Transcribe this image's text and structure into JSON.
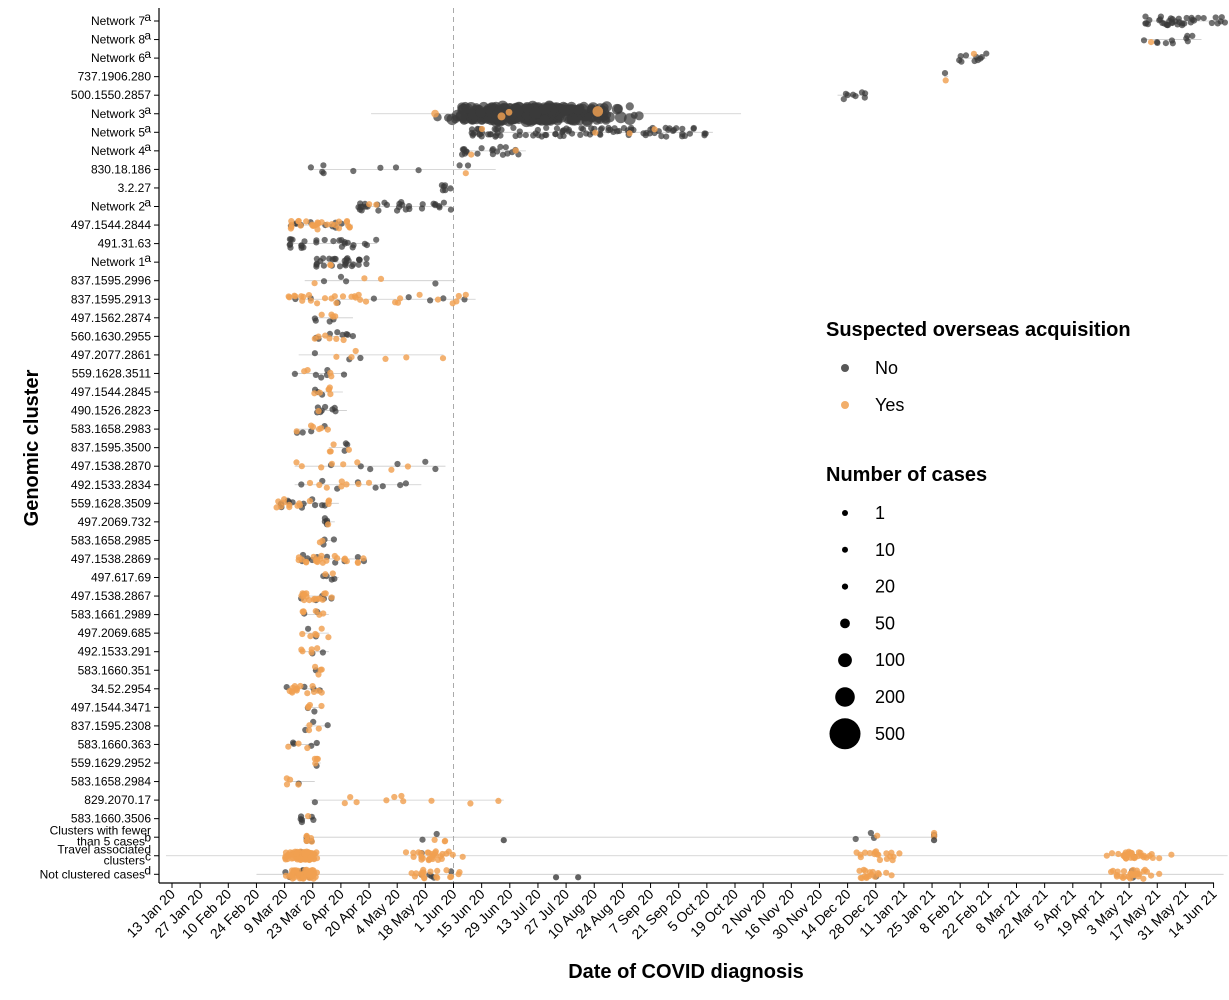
{
  "chart_data": {
    "type": "scatter",
    "title": "",
    "xlabel": "Date of COVID diagnosis",
    "ylabel": "Genomic cluster",
    "x_ticks": [
      "13 Jan 20",
      "27 Jan 20",
      "10 Feb 20",
      "24 Feb 20",
      "9 Mar 20",
      "23 Mar 20",
      "6 Apr 20",
      "20 Apr 20",
      "4 May 20",
      "18 May 20",
      "1 Jun 20",
      "15 Jun 20",
      "29 Jun 20",
      "13 Jul 20",
      "27 Jul 20",
      "10 Aug 20",
      "24 Aug 20",
      "7 Sep 20",
      "21 Sep 20",
      "5 Oct 20",
      "19 Oct 20",
      "2 Nov 20",
      "16 Nov 20",
      "30 Nov 20",
      "14 Dec 20",
      "28 Dec 20",
      "11 Jan 21",
      "25 Jan 21",
      "8 Feb 21",
      "22 Feb 21",
      "8 Mar 21",
      "22 Mar 21",
      "5 Apr 21",
      "19 Apr 21",
      "3 May 21",
      "17 May 21",
      "31 May 21",
      "14 Jun 21"
    ],
    "reference_line": "1 Jun 20",
    "clusters": [
      {
        "label": "Network 7",
        "sup": "a",
        "start": "2021-05-11",
        "end": "2021-06-20",
        "no": 38,
        "yes": 0
      },
      {
        "label": "Network 8",
        "sup": "a",
        "start": "2021-05-09",
        "end": "2021-06-08",
        "no": 10,
        "yes": 1
      },
      {
        "label": "Network 6",
        "sup": "a",
        "start": "2021-02-07",
        "end": "2021-02-21",
        "no": 10,
        "yes": 1
      },
      {
        "label": "737.1906.280",
        "sup": "",
        "start": "2021-01-31",
        "end": "2021-02-02",
        "no": 1,
        "yes": 1
      },
      {
        "label": "500.1550.2857",
        "sup": "",
        "start": "2020-12-09",
        "end": "2020-12-23",
        "no": 8,
        "yes": 0
      },
      {
        "label": "Network 3",
        "sup": "a",
        "start": "2020-04-21",
        "end": "2020-10-22",
        "no": 420,
        "yes": 4
      },
      {
        "label": "Network 5",
        "sup": "a",
        "start": "2020-06-10",
        "end": "2020-10-08",
        "no": 100,
        "yes": 4
      },
      {
        "label": "Network 4",
        "sup": "a",
        "start": "2020-06-05",
        "end": "2020-07-07",
        "no": 20,
        "yes": 2
      },
      {
        "label": "830.18.186",
        "sup": "",
        "start": "2020-03-22",
        "end": "2020-06-22",
        "no": 10,
        "yes": 1
      },
      {
        "label": "3.2.27",
        "sup": "",
        "start": "2020-05-26",
        "end": "2020-06-01",
        "no": 6,
        "yes": 0
      },
      {
        "label": "Network 2",
        "sup": "a",
        "start": "2020-04-14",
        "end": "2020-05-31",
        "no": 30,
        "yes": 2
      },
      {
        "label": "497.1544.2844",
        "sup": "",
        "start": "2020-03-12",
        "end": "2020-04-12",
        "no": 10,
        "yes": 28
      },
      {
        "label": "491.31.63",
        "sup": "",
        "start": "2020-03-11",
        "end": "2020-04-24",
        "no": 26,
        "yes": 0
      },
      {
        "label": "Network 1",
        "sup": "a",
        "start": "2020-03-24",
        "end": "2020-04-19",
        "no": 28,
        "yes": 2
      },
      {
        "label": "837.1595.2996",
        "sup": "",
        "start": "2020-03-19",
        "end": "2020-06-02",
        "no": 4,
        "yes": 3
      },
      {
        "label": "837.1595.2913",
        "sup": "",
        "start": "2020-03-11",
        "end": "2020-06-12",
        "no": 8,
        "yes": 30
      },
      {
        "label": "497.1562.2874",
        "sup": "",
        "start": "2020-03-24",
        "end": "2020-04-12",
        "no": 4,
        "yes": 4
      },
      {
        "label": "560.1630.2955",
        "sup": "",
        "start": "2020-03-24",
        "end": "2020-04-12",
        "no": 8,
        "yes": 6
      },
      {
        "label": "497.2077.2861",
        "sup": "",
        "start": "2020-03-16",
        "end": "2020-05-27",
        "no": 3,
        "yes": 6
      },
      {
        "label": "559.1628.3511",
        "sup": "",
        "start": "2020-03-14",
        "end": "2020-04-09",
        "no": 6,
        "yes": 4
      },
      {
        "label": "497.1544.2845",
        "sup": "",
        "start": "2020-03-23",
        "end": "2020-04-07",
        "no": 3,
        "yes": 6
      },
      {
        "label": "490.1526.2823",
        "sup": "",
        "start": "2020-03-25",
        "end": "2020-04-09",
        "no": 8,
        "yes": 1
      },
      {
        "label": "583.1658.2983",
        "sup": "",
        "start": "2020-03-14",
        "end": "2020-04-01",
        "no": 4,
        "yes": 6
      },
      {
        "label": "837.1595.3500",
        "sup": "",
        "start": "2020-03-31",
        "end": "2020-04-10",
        "no": 3,
        "yes": 4
      },
      {
        "label": "497.1538.2870",
        "sup": "",
        "start": "2020-03-14",
        "end": "2020-05-28",
        "no": 6,
        "yes": 8
      },
      {
        "label": "492.1533.2834",
        "sup": "",
        "start": "2020-03-14",
        "end": "2020-05-16",
        "no": 8,
        "yes": 8
      },
      {
        "label": "559.1628.3509",
        "sup": "",
        "start": "2020-03-05",
        "end": "2020-04-05",
        "no": 12,
        "yes": 14
      },
      {
        "label": "497.2069.732",
        "sup": "",
        "start": "2020-03-29",
        "end": "2020-04-03",
        "no": 5,
        "yes": 1
      },
      {
        "label": "583.1658.2985",
        "sup": "",
        "start": "2020-03-26",
        "end": "2020-04-03",
        "no": 3,
        "yes": 2
      },
      {
        "label": "497.1538.2869",
        "sup": "",
        "start": "2020-03-16",
        "end": "2020-04-19",
        "no": 10,
        "yes": 22
      },
      {
        "label": "497.617.69",
        "sup": "",
        "start": "2020-03-28",
        "end": "2020-04-05",
        "no": 4,
        "yes": 2
      },
      {
        "label": "497.1538.2867",
        "sup": "",
        "start": "2020-03-17",
        "end": "2020-04-03",
        "no": 6,
        "yes": 16
      },
      {
        "label": "583.1661.2989",
        "sup": "",
        "start": "2020-03-18",
        "end": "2020-03-31",
        "no": 2,
        "yes": 6
      },
      {
        "label": "497.2069.685",
        "sup": "",
        "start": "2020-03-17",
        "end": "2020-03-31",
        "no": 2,
        "yes": 6
      },
      {
        "label": "492.1533.291",
        "sup": "",
        "start": "2020-03-16",
        "end": "2020-03-31",
        "no": 2,
        "yes": 5
      },
      {
        "label": "583.1660.351",
        "sup": "",
        "start": "2020-03-23",
        "end": "2020-03-28",
        "no": 1,
        "yes": 4
      },
      {
        "label": "34.52.2954",
        "sup": "",
        "start": "2020-03-09",
        "end": "2020-03-28",
        "no": 4,
        "yes": 14
      },
      {
        "label": "497.1544.3471",
        "sup": "",
        "start": "2020-03-20",
        "end": "2020-03-28",
        "no": 2,
        "yes": 4
      },
      {
        "label": "837.1595.2308",
        "sup": "",
        "start": "2020-03-19",
        "end": "2020-03-31",
        "no": 3,
        "yes": 3
      },
      {
        "label": "583.1660.363",
        "sup": "",
        "start": "2020-03-10",
        "end": "2020-03-26",
        "no": 4,
        "yes": 3
      },
      {
        "label": "559.1629.2952",
        "sup": "",
        "start": "2020-03-24",
        "end": "2020-03-27",
        "no": 1,
        "yes": 4
      },
      {
        "label": "583.1658.2984",
        "sup": "",
        "start": "2020-03-10",
        "end": "2020-03-24",
        "no": 1,
        "yes": 4
      },
      {
        "label": "829.2070.17",
        "sup": "",
        "start": "2020-03-22",
        "end": "2020-06-26",
        "no": 1,
        "yes": 10
      },
      {
        "label": "583.1660.3506",
        "sup": "",
        "start": "2020-03-17",
        "end": "2020-03-24",
        "no": 6,
        "yes": 1
      },
      {
        "label": "Clusters with fewer\nthan 5 cases",
        "sup": "b",
        "start": "2020-03-20",
        "end": "2021-01-26",
        "no": 12,
        "yes": 12
      },
      {
        "label": "Travel associated\nclusters",
        "sup": "c",
        "start": "2020-01-10",
        "end": "2021-06-21",
        "no": 5,
        "yes": 160
      },
      {
        "label": "Not clustered cases",
        "sup": "d",
        "start": "2020-02-24",
        "end": "2021-06-19",
        "no": 20,
        "yes": 120
      }
    ],
    "extra_points": [
      {
        "cluster": "Not clustered cases",
        "date": "2020-07-22",
        "group": "No"
      },
      {
        "cluster": "Not clustered cases",
        "date": "2020-08-02",
        "group": "No"
      },
      {
        "cluster": "Clusters with fewer\nthan 5 cases",
        "date": "2021-01-26",
        "group": "No"
      },
      {
        "cluster": "Clusters with fewer\nthan 5 cases",
        "date": "2020-06-26",
        "group": "No"
      }
    ],
    "legend_color": {
      "title": "Suspected overseas acquisition",
      "items": [
        {
          "label": "No",
          "color": "#3a3a3a"
        },
        {
          "label": "Yes",
          "color": "#f0a050"
        }
      ]
    },
    "legend_size": {
      "title": "Number of cases",
      "items": [
        {
          "label": "1",
          "value": 1
        },
        {
          "label": "10",
          "value": 10
        },
        {
          "label": "20",
          "value": 20
        },
        {
          "label": "50",
          "value": 50
        },
        {
          "label": "100",
          "value": 100
        },
        {
          "label": "200",
          "value": 200
        },
        {
          "label": "500",
          "value": 500
        }
      ]
    },
    "legend_position": "right-center",
    "grid": false
  }
}
